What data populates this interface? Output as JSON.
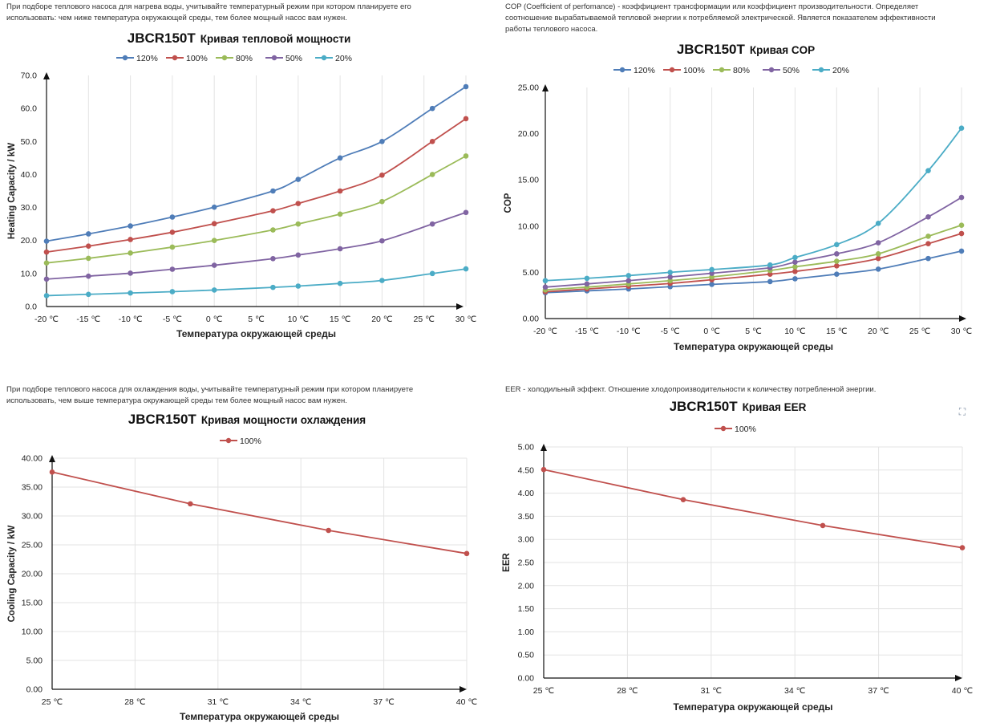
{
  "panels": {
    "heat": {
      "description": "При подборе теплового насоса для нагрева воды, учитывайте температурный режим при котором планируете его использовать: чем ниже температура окружающей среды, тем более мощный насос вам нужен.",
      "title_model": "JBCR150T",
      "title_text": "Кривая тепловой мощности"
    },
    "cop": {
      "description": "COP (Coefficient of perfomance) - коэффициент трансформации или коэффициент производительности. Определяет соотношение вырабатываемой тепловой энергии к потребляемой электрической. Является показателем эффективности работы теплового насоса.",
      "title_model": "JBCR150T",
      "title_text": "Кривая COP"
    },
    "cool": {
      "description": "При подборе теплового насоса для охлаждения воды, учитывайте температурный режим при котором планируете использовать, чем выше температура окружающей среды тем более мощный насос вам нужен.",
      "title_model": "JBCR150T",
      "title_text": "Кривая мощности охлаждения"
    },
    "eer": {
      "description": "EER - холодильный эффект. Отношение хлодопроизводительности к количеству потребленной энергии.",
      "title_model": "JBCR150T",
      "title_text": "Кривая EER"
    }
  },
  "chart_data": [
    {
      "id": "heat",
      "type": "line",
      "title": "JBCR150T Кривая тепловой мощности",
      "xlabel": "Температура окружающей среды",
      "ylabel": "Heating Capacity / kW",
      "x_ticks": [
        -20,
        -15,
        -10,
        -5,
        0,
        5,
        10,
        15,
        20,
        25,
        30
      ],
      "x_tick_labels": [
        "-20 ℃",
        "-15 ℃",
        "-10 ℃",
        "-5 ℃",
        "0 ℃",
        "5 ℃",
        "10 ℃",
        "15 ℃",
        "20 ℃",
        "25 ℃",
        "30 ℃"
      ],
      "xlim": [
        -20,
        30
      ],
      "ylim": [
        0,
        70
      ],
      "y_ticks": [
        0,
        10,
        20,
        30,
        40,
        50,
        60,
        70
      ],
      "y_tick_labels": [
        "0.0",
        "10.0",
        "20.0",
        "30.0",
        "40.0",
        "50.0",
        "60.0",
        "70.0"
      ],
      "legend": "top",
      "grid": "vertical",
      "series": [
        {
          "name": "120%",
          "color": "#4f7db8",
          "x": [
            -20,
            -15,
            -10,
            -5,
            0,
            7,
            10,
            15,
            20,
            26,
            30
          ],
          "y": [
            19.8,
            22,
            24.4,
            27.1,
            30.1,
            35,
            38.5,
            45,
            50,
            60,
            66.6
          ]
        },
        {
          "name": "100%",
          "color": "#c0504d",
          "x": [
            -20,
            -15,
            -10,
            -5,
            0,
            7,
            10,
            15,
            20,
            26,
            30
          ],
          "y": [
            16.5,
            18.3,
            20.3,
            22.5,
            25.1,
            29,
            31.2,
            35,
            39.8,
            50,
            56.9
          ]
        },
        {
          "name": "80%",
          "color": "#9bbb59",
          "x": [
            -20,
            -15,
            -10,
            -5,
            0,
            7,
            10,
            15,
            20,
            26,
            30
          ],
          "y": [
            13.2,
            14.6,
            16.2,
            18,
            20,
            23.2,
            25,
            28,
            31.8,
            40,
            45.6
          ]
        },
        {
          "name": "50%",
          "color": "#8064a2",
          "x": [
            -20,
            -15,
            -10,
            -5,
            0,
            7,
            10,
            15,
            20,
            26,
            30
          ],
          "y": [
            8.3,
            9.2,
            10.1,
            11.3,
            12.5,
            14.5,
            15.6,
            17.5,
            19.9,
            25,
            28.5
          ]
        },
        {
          "name": "20%",
          "color": "#4bacc6",
          "x": [
            -20,
            -15,
            -10,
            -5,
            0,
            7,
            10,
            15,
            20,
            26,
            30
          ],
          "y": [
            3.3,
            3.7,
            4.1,
            4.5,
            5,
            5.8,
            6.2,
            7,
            7.9,
            10,
            11.4
          ]
        }
      ]
    },
    {
      "id": "cop",
      "type": "line",
      "title": "JBCR150T Кривая COP",
      "xlabel": "Температура окружающей среды",
      "ylabel": "COP",
      "x_ticks": [
        -20,
        -15,
        -10,
        -5,
        0,
        5,
        10,
        15,
        20,
        25,
        30
      ],
      "x_tick_labels": [
        "-20 ℃",
        "-15 ℃",
        "-10 ℃",
        "-5 ℃",
        "0 ℃",
        "5 ℃",
        "10 ℃",
        "15 ℃",
        "20 ℃",
        "25 ℃",
        "30 ℃"
      ],
      "xlim": [
        -20,
        30
      ],
      "ylim": [
        0,
        25
      ],
      "y_ticks": [
        0,
        5,
        10,
        15,
        20,
        25
      ],
      "y_tick_labels": [
        "0.00",
        "5.00",
        "10.00",
        "15.00",
        "20.00",
        "25.00"
      ],
      "legend": "top",
      "grid": "vertical",
      "series": [
        {
          "name": "120%",
          "color": "#4f7db8",
          "x": [
            -20,
            -15,
            -10,
            -5,
            0,
            7,
            10,
            15,
            20,
            26,
            30
          ],
          "y": [
            2.8,
            3,
            3.2,
            3.45,
            3.7,
            4,
            4.3,
            4.8,
            5.35,
            6.5,
            7.3
          ]
        },
        {
          "name": "100%",
          "color": "#c0504d",
          "x": [
            -20,
            -15,
            -10,
            -5,
            0,
            7,
            10,
            15,
            20,
            26,
            30
          ],
          "y": [
            2.9,
            3.2,
            3.5,
            3.8,
            4.2,
            4.8,
            5.1,
            5.7,
            6.5,
            8.1,
            9.2
          ]
        },
        {
          "name": "80%",
          "color": "#9bbb59",
          "x": [
            -20,
            -15,
            -10,
            -5,
            0,
            7,
            10,
            15,
            20,
            26,
            30
          ],
          "y": [
            3.1,
            3.4,
            3.75,
            4.1,
            4.5,
            5.2,
            5.6,
            6.2,
            7,
            8.9,
            10.1
          ]
        },
        {
          "name": "50%",
          "color": "#8064a2",
          "x": [
            -20,
            -15,
            -10,
            -5,
            0,
            7,
            10,
            15,
            20,
            26,
            30
          ],
          "y": [
            3.4,
            3.75,
            4.1,
            4.5,
            4.9,
            5.5,
            6.1,
            7,
            8.2,
            11,
            13.1
          ]
        },
        {
          "name": "20%",
          "color": "#4bacc6",
          "x": [
            -20,
            -15,
            -10,
            -5,
            0,
            7,
            10,
            15,
            20,
            26,
            30
          ],
          "y": [
            4.1,
            4.35,
            4.65,
            5,
            5.3,
            5.8,
            6.6,
            8,
            10.3,
            16,
            20.6
          ]
        }
      ]
    },
    {
      "id": "cool",
      "type": "line",
      "title": "JBCR150T Кривая мощности охлаждения",
      "xlabel": "Температура окружающей среды",
      "ylabel": "Cooling Capacity / kW",
      "x_ticks": [
        25,
        28,
        31,
        34,
        37,
        40
      ],
      "x_tick_labels": [
        "25 ℃",
        "28 ℃",
        "31 ℃",
        "34 ℃",
        "37 ℃",
        "40 ℃"
      ],
      "xlim": [
        25,
        40
      ],
      "ylim": [
        0,
        40
      ],
      "y_ticks": [
        0,
        5,
        10,
        15,
        20,
        25,
        30,
        35,
        40
      ],
      "y_tick_labels": [
        "0.00",
        "5.00",
        "10.00",
        "15.00",
        "20.00",
        "25.00",
        "30.00",
        "35.00",
        "40.00"
      ],
      "legend": "top",
      "grid": "both",
      "series": [
        {
          "name": "100%",
          "color": "#c0504d",
          "x": [
            25,
            30,
            35,
            40
          ],
          "y": [
            37.6,
            32.1,
            27.5,
            23.5
          ]
        }
      ]
    },
    {
      "id": "eer",
      "type": "line",
      "title": "JBCR150T Кривая EER",
      "xlabel": "Температура окружающей среды",
      "ylabel": "EER",
      "x_ticks": [
        25,
        28,
        31,
        34,
        37,
        40
      ],
      "x_tick_labels": [
        "25 ℃",
        "28 ℃",
        "31 ℃",
        "34 ℃",
        "37 ℃",
        "40 ℃"
      ],
      "xlim": [
        25,
        40
      ],
      "ylim": [
        0,
        5
      ],
      "y_ticks": [
        0,
        0.5,
        1,
        1.5,
        2,
        2.5,
        3,
        3.5,
        4,
        4.5,
        5
      ],
      "y_tick_labels": [
        "0.00",
        "0.50",
        "1.00",
        "1.50",
        "2.00",
        "2.50",
        "3.00",
        "3.50",
        "4.00",
        "4.50",
        "5.00"
      ],
      "legend": "top",
      "grid": "both",
      "series": [
        {
          "name": "100%",
          "color": "#c0504d",
          "x": [
            25,
            30,
            35,
            40
          ],
          "y": [
            4.51,
            3.86,
            3.3,
            2.82
          ]
        }
      ]
    }
  ]
}
